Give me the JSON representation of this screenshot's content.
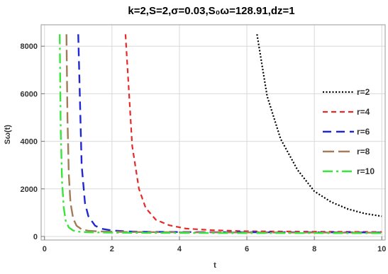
{
  "chart_data": {
    "type": "line",
    "title": "k=2,S=2,σ=0.03,S₀ω=128.91,dz=1",
    "xlabel": "t",
    "ylabel": "Sω(t)",
    "xlim": [
      -0.1,
      10.1
    ],
    "ylim": [
      -150,
      8900
    ],
    "xticks": [
      0,
      2,
      4,
      6,
      8,
      10
    ],
    "yticks": [
      0,
      2000,
      4000,
      6000,
      8000
    ],
    "grid": true,
    "legend_position": "right",
    "series": [
      {
        "name": "r=2",
        "color": "#000000",
        "dash": "2,2.5",
        "width": 2.2,
        "x": [
          6.3,
          6.6,
          7.0,
          7.5,
          8.0,
          8.5,
          9.0,
          9.5,
          10.0
        ],
        "y": [
          8500,
          5900,
          4100,
          2800,
          1900,
          1450,
          1150,
          960,
          850
        ]
      },
      {
        "name": "r=4",
        "color": "#e8292b",
        "dash": "7,5",
        "width": 2.2,
        "x": [
          2.4,
          2.6,
          2.8,
          3.0,
          3.3,
          3.7,
          4.2,
          5.0,
          6.0,
          8.0,
          10.0
        ],
        "y": [
          8500,
          3800,
          2000,
          1200,
          700,
          470,
          330,
          260,
          220,
          200,
          190
        ]
      },
      {
        "name": "r=6",
        "color": "#2028d2",
        "dash": "12,7",
        "width": 2.4,
        "x": [
          1.0,
          1.1,
          1.2,
          1.3,
          1.5,
          1.7,
          2.0,
          2.5,
          3.0,
          5.0,
          10.0
        ],
        "y": [
          8500,
          3000,
          1400,
          850,
          450,
          320,
          250,
          210,
          195,
          180,
          170
        ]
      },
      {
        "name": "r=8",
        "color": "#a37c5a",
        "dash": "16,6",
        "width": 2.4,
        "x": [
          0.65,
          0.68,
          0.72,
          0.77,
          0.85,
          0.95,
          1.1,
          1.3,
          1.6,
          2.5,
          4.0,
          7.0,
          10.0
        ],
        "y": [
          8500,
          5000,
          2600,
          1400,
          750,
          450,
          300,
          240,
          210,
          185,
          175,
          165,
          160
        ]
      },
      {
        "name": "r=10",
        "color": "#39e53c",
        "dash": "14,5,3,5",
        "width": 2.4,
        "x": [
          0.45,
          0.48,
          0.52,
          0.57,
          0.63,
          0.72,
          0.85,
          1.0,
          1.3,
          2.0,
          3.0,
          5.0,
          10.0
        ],
        "y": [
          8500,
          4500,
          2300,
          1200,
          650,
          380,
          250,
          200,
          175,
          160,
          150,
          145,
          140
        ]
      }
    ]
  }
}
